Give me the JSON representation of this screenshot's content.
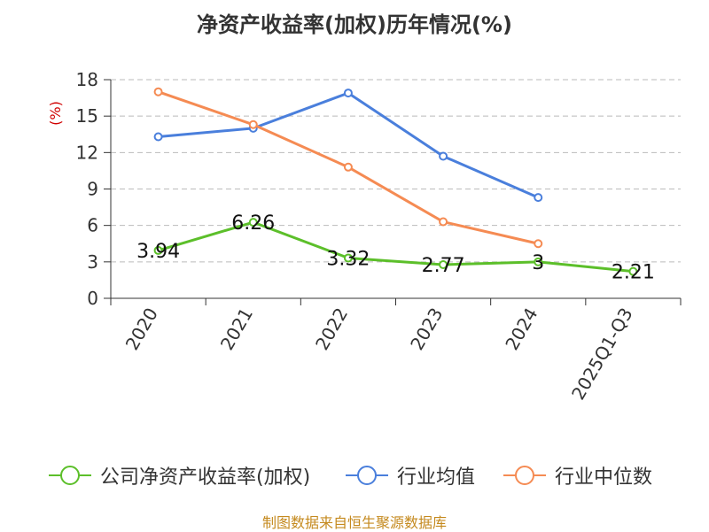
{
  "title": "净资产收益率(加权)历年情况(%)",
  "footer": "制图数据来自恒生聚源数据库",
  "chart_data": {
    "type": "line",
    "title": "净资产收益率(加权)历年情况(%)",
    "ylabel": "(%)",
    "xlabel": "",
    "ylim": [
      0,
      18
    ],
    "yticks": [
      0,
      3,
      6,
      9,
      12,
      15,
      18
    ],
    "grid": "horizontal dashed",
    "legend_position": "bottom",
    "categories": [
      "2020",
      "2021",
      "2022",
      "2023",
      "2024",
      "2025Q1-Q3"
    ],
    "series": [
      {
        "name": "公司净资产收益率(加权)",
        "color": "#5cbf2a",
        "values": [
          3.94,
          6.26,
          3.32,
          2.77,
          3,
          2.21
        ],
        "labels": [
          "3.94",
          "6.26",
          "3.32",
          "2.77",
          "3",
          "2.21"
        ]
      },
      {
        "name": "行业均值",
        "color": "#4a7fdc",
        "values": [
          13.3,
          14,
          16.9,
          11.7,
          8.3,
          null
        ]
      },
      {
        "name": "行业中位数",
        "color": "#f58b53",
        "values": [
          17,
          14.3,
          10.8,
          6.3,
          4.5,
          null
        ]
      }
    ]
  },
  "colors": {
    "axis": "#333333",
    "grid": "#bbbbbb",
    "ylabel": "#d00000",
    "footer": "#c58a1f"
  }
}
